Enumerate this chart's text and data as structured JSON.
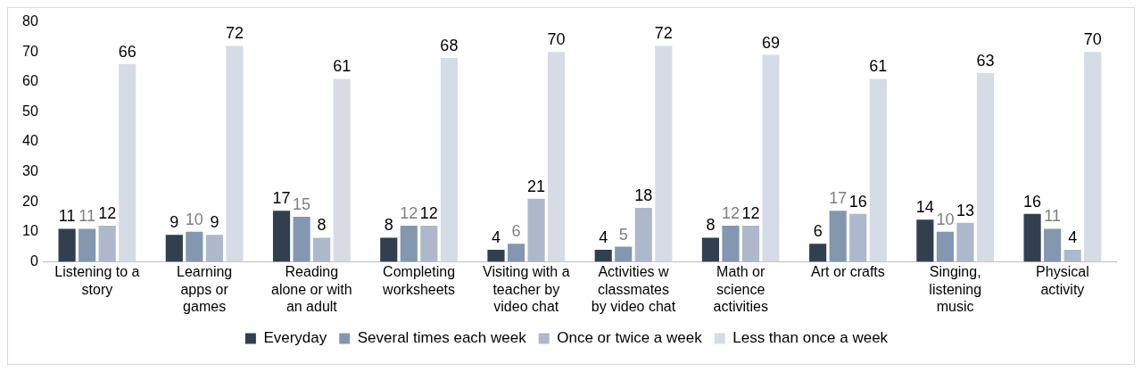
{
  "chart_data": {
    "type": "bar",
    "categories": [
      "Listening to a story",
      "Learning apps or games",
      "Reading alone or with an adult",
      "Completing worksheets",
      "Visiting with a teacher by video chat",
      "Activities w classmates by video chat",
      "Math or science activities",
      "Art or crafts",
      "Singing, listening music",
      "Physical activity"
    ],
    "series": [
      {
        "name": "Everyday",
        "color": "#323f4f",
        "values": [
          11,
          9,
          17,
          8,
          4,
          4,
          8,
          6,
          14,
          16
        ]
      },
      {
        "name": "Several times each week",
        "color": "#8497b0",
        "values": [
          11,
          10,
          15,
          12,
          6,
          5,
          12,
          17,
          10,
          11
        ]
      },
      {
        "name": "Once or twice a week",
        "color": "#adb9ca",
        "values": [
          12,
          9,
          8,
          12,
          21,
          18,
          12,
          16,
          13,
          4
        ]
      },
      {
        "name": "Less than once a week",
        "color": "#d6dce5",
        "values": [
          66,
          72,
          61,
          68,
          70,
          72,
          69,
          61,
          63,
          70
        ]
      }
    ],
    "ylim": [
      0,
      80
    ],
    "yticks": [
      0,
      10,
      20,
      30,
      40,
      50,
      60,
      70,
      80
    ],
    "grid": false,
    "legend": "bottom",
    "data_labels": true
  }
}
